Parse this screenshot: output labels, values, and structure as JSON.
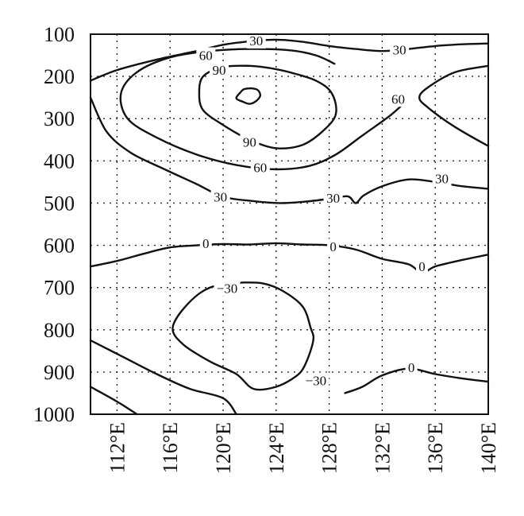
{
  "chart_data": {
    "type": "contour",
    "title": "",
    "xlabel": "",
    "ylabel": "",
    "xlim": [
      110,
      140
    ],
    "ylim": [
      1000,
      100
    ],
    "x_tick_labels": [
      {
        "value": 112,
        "label": "112°E"
      },
      {
        "value": 116,
        "label": "116°E"
      },
      {
        "value": 120,
        "label": "120°E"
      },
      {
        "value": 124,
        "label": "124°E"
      },
      {
        "value": 128,
        "label": "128°E"
      },
      {
        "value": 132,
        "label": "132°E"
      },
      {
        "value": 136,
        "label": "136°E"
      },
      {
        "value": 140,
        "label": "140°E"
      }
    ],
    "y_tick_labels": [
      {
        "value": 100,
        "label": "100"
      },
      {
        "value": 200,
        "label": "200"
      },
      {
        "value": 300,
        "label": "300"
      },
      {
        "value": 400,
        "label": "400"
      },
      {
        "value": 500,
        "label": "500"
      },
      {
        "value": 600,
        "label": "600"
      },
      {
        "value": 700,
        "label": "700"
      },
      {
        "value": 800,
        "label": "800"
      },
      {
        "value": 900,
        "label": "900"
      },
      {
        "value": 1000,
        "label": "1000"
      }
    ],
    "grid": true,
    "contours": [
      {
        "level": "30",
        "points": [
          [
            110,
            210
          ],
          [
            112,
            185
          ],
          [
            115,
            160
          ],
          [
            118,
            140
          ],
          [
            120,
            125
          ],
          [
            122,
            117
          ],
          [
            124,
            113
          ],
          [
            126,
            118
          ],
          [
            128,
            128
          ],
          [
            130,
            135
          ],
          [
            132,
            140
          ],
          [
            134,
            135
          ],
          [
            136,
            128
          ],
          [
            138,
            124
          ],
          [
            140,
            122
          ]
        ]
      },
      {
        "level": "60",
        "points": [
          [
            128.4,
            170
          ],
          [
            127,
            150
          ],
          [
            125,
            138
          ],
          [
            122,
            135
          ],
          [
            119,
            140
          ],
          [
            116,
            155
          ],
          [
            113.5,
            190
          ],
          [
            112.3,
            240
          ],
          [
            112.8,
            300
          ],
          [
            115,
            345
          ],
          [
            118,
            385
          ],
          [
            121,
            410
          ],
          [
            124,
            420
          ],
          [
            126.5,
            412
          ],
          [
            128.5,
            385
          ],
          [
            130.5,
            340
          ],
          [
            132.5,
            295
          ],
          [
            133.7,
            262
          ]
        ]
      },
      {
        "level": "30",
        "points": [
          [
            110,
            250
          ],
          [
            111.2,
            330
          ],
          [
            113,
            380
          ],
          [
            115.6,
            420
          ],
          [
            118,
            455
          ],
          [
            120,
            485
          ],
          [
            122.2,
            495
          ],
          [
            124.2,
            500
          ],
          [
            126,
            497
          ],
          [
            128,
            490
          ],
          [
            129.4,
            484
          ],
          [
            130,
            500
          ],
          [
            130.6,
            482
          ],
          [
            132,
            460
          ],
          [
            134,
            444
          ],
          [
            136,
            450
          ],
          [
            138,
            460
          ],
          [
            140,
            466
          ]
        ]
      },
      {
        "level": "60",
        "points": [
          [
            140,
            175
          ],
          [
            137.5,
            190
          ],
          [
            135.5,
            225
          ],
          [
            134.8,
            250
          ],
          [
            135.5,
            275
          ],
          [
            137.5,
            320
          ],
          [
            140,
            365
          ]
        ]
      },
      {
        "level": "90",
        "points": [
          [
            123.5,
            180
          ],
          [
            122,
            175
          ],
          [
            120,
            178
          ],
          [
            118.5,
            200
          ],
          [
            118.2,
            240
          ],
          [
            118.5,
            280
          ],
          [
            120,
            315
          ],
          [
            122,
            350
          ],
          [
            124,
            370
          ],
          [
            126,
            362
          ],
          [
            127.5,
            330
          ],
          [
            128.5,
            290
          ],
          [
            128.2,
            240
          ],
          [
            127,
            210
          ],
          [
            125,
            190
          ],
          [
            123.5,
            180
          ]
        ]
      },
      {
        "level": "",
        "points": [
          [
            122.1,
            228
          ],
          [
            122.6,
            232
          ],
          [
            122.8,
            245
          ],
          [
            122.5,
            258
          ],
          [
            122,
            265
          ],
          [
            121.5,
            260
          ],
          [
            121,
            252
          ],
          [
            121.3,
            238
          ],
          [
            121.6,
            230
          ],
          [
            122.1,
            228
          ]
        ]
      },
      {
        "level": "0",
        "points": [
          [
            110,
            650
          ],
          [
            112,
            637
          ],
          [
            114,
            620
          ],
          [
            116,
            605
          ],
          [
            118,
            600
          ],
          [
            120,
            597
          ],
          [
            122,
            598
          ],
          [
            124,
            595
          ],
          [
            126,
            598
          ],
          [
            128,
            600
          ],
          [
            130,
            610
          ],
          [
            132,
            632
          ],
          [
            134,
            645
          ],
          [
            135,
            665
          ],
          [
            136,
            650
          ],
          [
            138,
            635
          ],
          [
            140,
            622
          ]
        ]
      },
      {
        "level": "-30",
        "points": [
          [
            121.5,
            688
          ],
          [
            119,
            700
          ],
          [
            117.3,
            740
          ],
          [
            116.2,
            795
          ],
          [
            117,
            835
          ],
          [
            119,
            875
          ],
          [
            121,
            905
          ],
          [
            122.3,
            940
          ],
          [
            124,
            935
          ],
          [
            125.5,
            910
          ],
          [
            126.2,
            882
          ],
          [
            126.8,
            825
          ],
          [
            126.6,
            795
          ],
          [
            126,
            745
          ],
          [
            124.5,
            708
          ],
          [
            123,
            690
          ],
          [
            121.5,
            688
          ]
        ]
      },
      {
        "level": "0",
        "points": [
          [
            129.2,
            950
          ],
          [
            130.5,
            935
          ],
          [
            132,
            908
          ],
          [
            134,
            892
          ],
          [
            136,
            905
          ],
          [
            138,
            915
          ],
          [
            140,
            923
          ]
        ]
      },
      {
        "level": "",
        "points": [
          [
            110,
            825
          ],
          [
            112.5,
            865
          ],
          [
            115,
            905
          ],
          [
            117.5,
            940
          ],
          [
            120,
            962
          ],
          [
            121,
            1000
          ]
        ]
      },
      {
        "level": "",
        "points": [
          [
            110,
            935
          ],
          [
            112,
            970
          ],
          [
            113.5,
            1000
          ]
        ]
      }
    ],
    "labels": [
      {
        "text": "30",
        "x": 122.5,
        "y": 115
      },
      {
        "text": "60",
        "x": 118.7,
        "y": 150
      },
      {
        "text": "90",
        "x": 119.7,
        "y": 185
      },
      {
        "text": "30",
        "x": 133.3,
        "y": 137
      },
      {
        "text": "60",
        "x": 133.2,
        "y": 253
      },
      {
        "text": "90",
        "x": 122,
        "y": 355
      },
      {
        "text": "60",
        "x": 122.8,
        "y": 415
      },
      {
        "text": "30",
        "x": 119.8,
        "y": 485
      },
      {
        "text": "30",
        "x": 128.3,
        "y": 488
      },
      {
        "text": "30",
        "x": 136.5,
        "y": 442
      },
      {
        "text": "0",
        "x": 118.7,
        "y": 595
      },
      {
        "text": "0",
        "x": 128.3,
        "y": 603
      },
      {
        "text": "0",
        "x": 135,
        "y": 650
      },
      {
        "text": "−30",
        "x": 120.3,
        "y": 702
      },
      {
        "text": "−30",
        "x": 127,
        "y": 920
      },
      {
        "text": "0",
        "x": 134.2,
        "y": 889
      }
    ]
  }
}
